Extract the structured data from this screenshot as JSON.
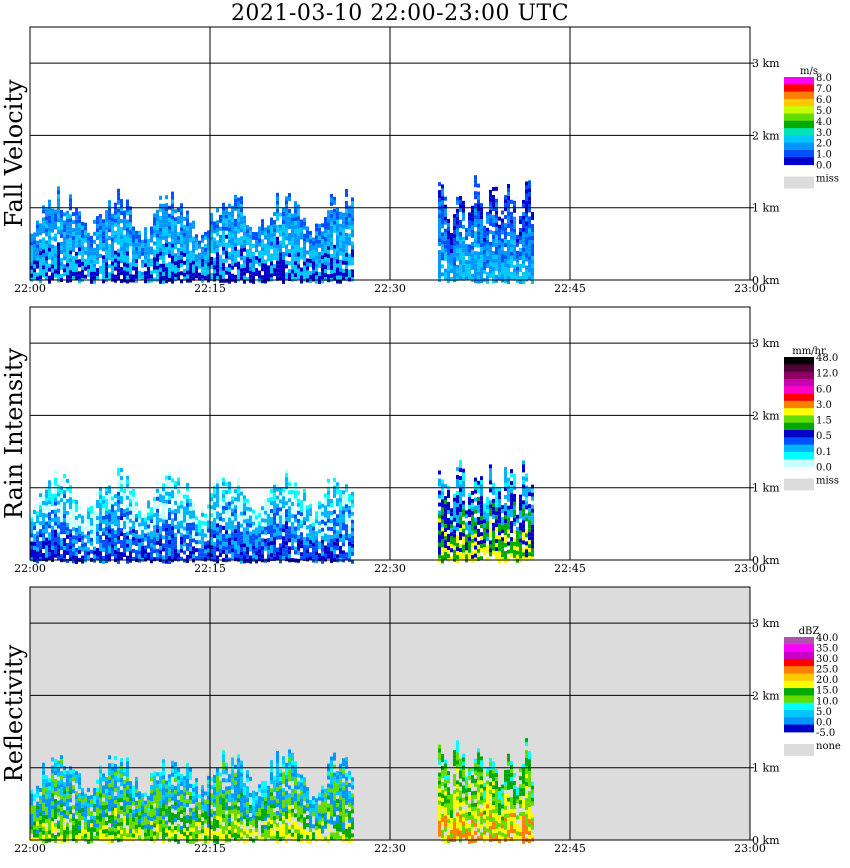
{
  "title": "2021-03-10  22:00-23:00 UTC",
  "chart_data": [
    {
      "type": "heatmap",
      "ylabel": "Fall Velocity",
      "x_ticks": [
        "22:00",
        "22:15",
        "22:30",
        "22:45",
        "23:00"
      ],
      "y_ticks": [
        "0 km",
        "1 km",
        "2 km",
        "3 km"
      ],
      "xlim": [
        "22:00",
        "23:00"
      ],
      "ylim_km": [
        0,
        3.5
      ],
      "background": "#ffffff",
      "colorbar": {
        "unit": "m/s",
        "colors": [
          "#ff00ff",
          "#ff0000",
          "#ff8000",
          "#ffc800",
          "#c8ff00",
          "#64dc00",
          "#00aa00",
          "#00e6b4",
          "#00c8ff",
          "#0096ff",
          "#0050ff",
          "#0000c8"
        ],
        "labels": [
          "8.0",
          "7.0",
          "6.0",
          "5.0",
          "4.0",
          "3.0",
          "2.0",
          "1.0",
          "0.0"
        ],
        "missing_label": "miss",
        "missing_color": "#dcdcdc"
      },
      "echo_cells": [
        {
          "t_start": "22:00",
          "t_end": "22:27",
          "top_km": 1.3,
          "colors": [
            "#0050ff",
            "#0096ff",
            "#00c8ff",
            "#0000c8"
          ]
        },
        {
          "t_start": "22:34",
          "t_end": "22:42",
          "top_km": 1.5,
          "colors": [
            "#0000c8",
            "#0050ff",
            "#0096ff",
            "#00c8ff"
          ]
        }
      ]
    },
    {
      "type": "heatmap",
      "ylabel": "Rain Intensity",
      "x_ticks": [
        "22:00",
        "22:15",
        "22:30",
        "22:45",
        "23:00"
      ],
      "y_ticks": [
        "0 km",
        "1 km",
        "2 km",
        "3 km"
      ],
      "xlim": [
        "22:00",
        "23:00"
      ],
      "ylim_km": [
        0,
        3.5
      ],
      "background": "#ffffff",
      "colorbar": {
        "unit": "mm/hr",
        "colors": [
          "#000000",
          "#500032",
          "#8c0064",
          "#c800b4",
          "#ff00c8",
          "#ff0000",
          "#ff8000",
          "#ffff00",
          "#64dc00",
          "#00aa00",
          "#0000c8",
          "#0050ff",
          "#00b4ff",
          "#00ffff",
          "#c8ffff"
        ],
        "labels": [
          "48.0",
          "12.0",
          "6.0",
          "3.0",
          "1.5",
          "0.5",
          "0.1",
          "0.0"
        ],
        "missing_label": "miss",
        "missing_color": "#dcdcdc"
      },
      "echo_cells": [
        {
          "t_start": "22:00",
          "t_end": "22:27",
          "top_km": 1.3,
          "colors": [
            "#00ffff",
            "#c8ffff",
            "#00b4ff",
            "#0050ff",
            "#0000c8"
          ]
        },
        {
          "t_start": "22:34",
          "t_end": "22:42",
          "top_km": 1.5,
          "colors": [
            "#00ffff",
            "#00b4ff",
            "#0000c8",
            "#00aa00",
            "#ffff00"
          ]
        }
      ]
    },
    {
      "type": "heatmap",
      "ylabel": "Reflectivity",
      "x_ticks": [
        "22:00",
        "22:15",
        "22:30",
        "22:45",
        "23:00"
      ],
      "y_ticks": [
        "0 km",
        "1 km",
        "2 km",
        "3 km"
      ],
      "xlim": [
        "22:00",
        "23:00"
      ],
      "ylim_km": [
        0,
        3.5
      ],
      "background": "#dcdcdc",
      "colorbar": {
        "unit": "dBZ",
        "colors": [
          "#b450b4",
          "#ff00ff",
          "#c800c8",
          "#ff0000",
          "#ff8000",
          "#ffc800",
          "#ffff00",
          "#00aa00",
          "#64dc00",
          "#00ffff",
          "#00c8ff",
          "#0096ff",
          "#0000c8"
        ],
        "labels": [
          "40.0",
          "35.0",
          "30.0",
          "25.0",
          "20.0",
          "15.0",
          "10.0",
          "5.0",
          "0.0",
          "-5.0"
        ],
        "missing_label": "none",
        "missing_color": "#dcdcdc"
      },
      "echo_cells": [
        {
          "t_start": "22:00",
          "t_end": "22:27",
          "top_km": 1.3,
          "colors": [
            "#00ffff",
            "#00c8ff",
            "#0096ff",
            "#64dc00",
            "#00aa00",
            "#ffff00"
          ]
        },
        {
          "t_start": "22:34",
          "t_end": "22:42",
          "top_km": 1.5,
          "colors": [
            "#00ffff",
            "#00aa00",
            "#64dc00",
            "#ffff00",
            "#ff8000"
          ]
        }
      ]
    }
  ]
}
